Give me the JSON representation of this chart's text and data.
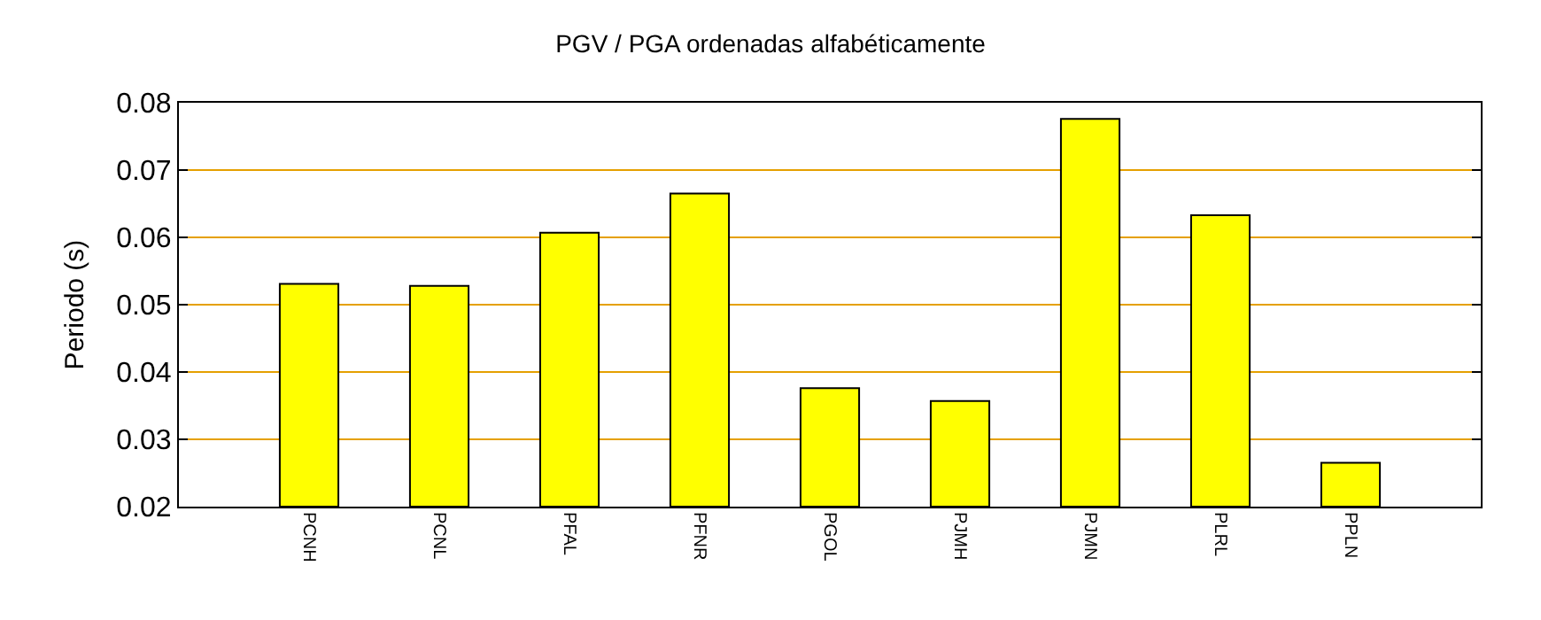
{
  "chart_data": {
    "type": "bar",
    "title": "PGV / PGA ordenadas alfabéticamente",
    "ylabel": "Periodo (s)",
    "categories": [
      "PCNH",
      "PCNL",
      "PFAL",
      "PFNR",
      "PGOL",
      "PJMH",
      "PJMN",
      "PLRL",
      "PPLN"
    ],
    "values": [
      0.0531,
      0.0528,
      0.0607,
      0.0665,
      0.0376,
      0.0357,
      0.0776,
      0.0633,
      0.0265
    ],
    "color": "#ffff00",
    "ylim": [
      0.02,
      0.08
    ],
    "yticks": [
      0.02,
      0.03,
      0.04,
      0.05,
      0.06,
      0.07,
      0.08
    ],
    "grid": "y"
  }
}
